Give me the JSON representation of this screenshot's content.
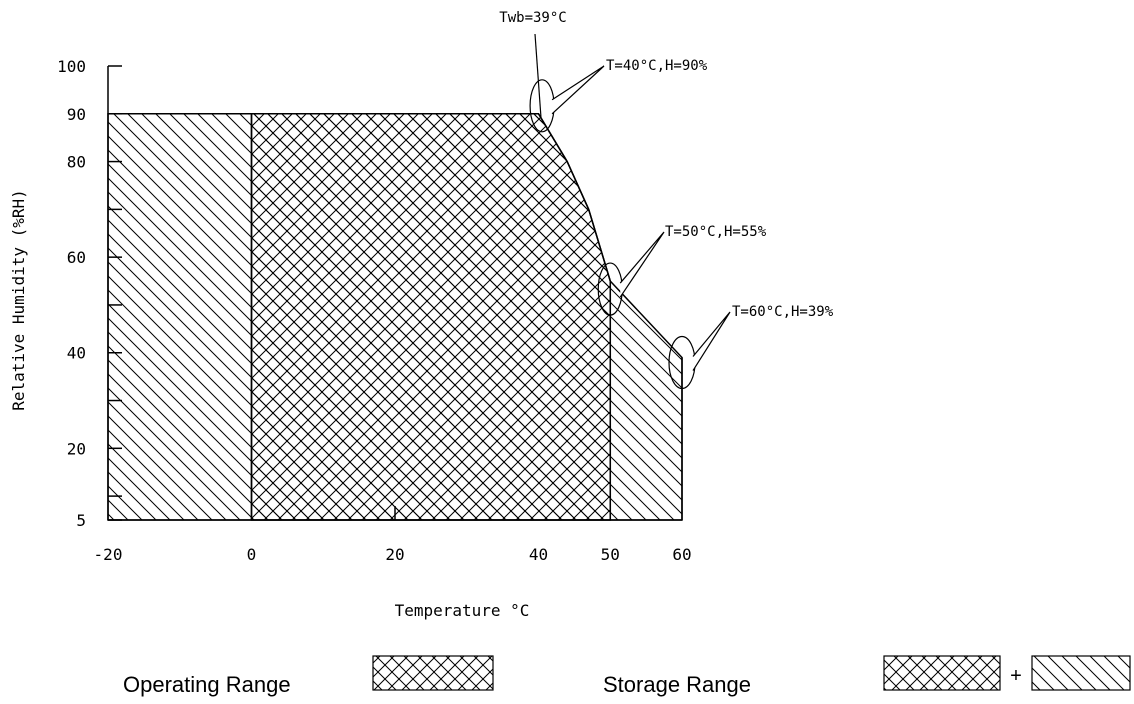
{
  "chart_data": {
    "type": "area",
    "title": "",
    "xlabel": "Temperature °C",
    "ylabel": "Relative Humidity (%RH)",
    "xlim": [
      -20,
      60
    ],
    "ylim": [
      5,
      100
    ],
    "x_ticks": [
      -20,
      0,
      20,
      40,
      50,
      60
    ],
    "x_tick_labels": [
      "-20",
      "0",
      "20",
      "40",
      "50",
      "60"
    ],
    "y_ticks": [
      5,
      20,
      40,
      60,
      80,
      90,
      100
    ],
    "y_tick_labels": [
      "5",
      "20",
      "40",
      "60",
      "80",
      "90",
      "100"
    ],
    "y_minor_ticks": [
      10,
      30,
      50,
      70
    ],
    "grid": false,
    "series": [
      {
        "name": "Operating Range",
        "pattern": "cross-hatch",
        "x": [
          0,
          40,
          44,
          47,
          50,
          50,
          0
        ],
        "y": [
          90,
          90,
          80,
          70,
          55,
          5,
          5
        ]
      },
      {
        "name": "Storage Range",
        "pattern": "cross-hatch + diagonal-hatch",
        "x": [
          -20,
          40,
          44,
          47,
          50,
          60,
          60,
          -20
        ],
        "y": [
          90,
          90,
          80,
          70,
          55,
          39,
          5,
          5
        ]
      }
    ],
    "annotations": [
      {
        "text": "Twb=39°C",
        "x": 40.5,
        "y": 90
      },
      {
        "text": "T=40°C,H=90%",
        "x": 40.5,
        "y": 90
      },
      {
        "text": "T=50°C,H=55%",
        "x": 50,
        "y": 55
      },
      {
        "text": "T=60°C,H=39%",
        "x": 60,
        "y": 39
      }
    ],
    "legend": {
      "placement": "bottom",
      "items": [
        {
          "label": "Operating Range",
          "swatches": [
            "cross-hatch"
          ]
        },
        {
          "label": "Storage Range",
          "swatches": [
            "cross-hatch",
            "diagonal-hatch"
          ],
          "joiner": "+"
        }
      ]
    },
    "colors": {
      "line": "#000000",
      "background": "#ffffff"
    }
  }
}
